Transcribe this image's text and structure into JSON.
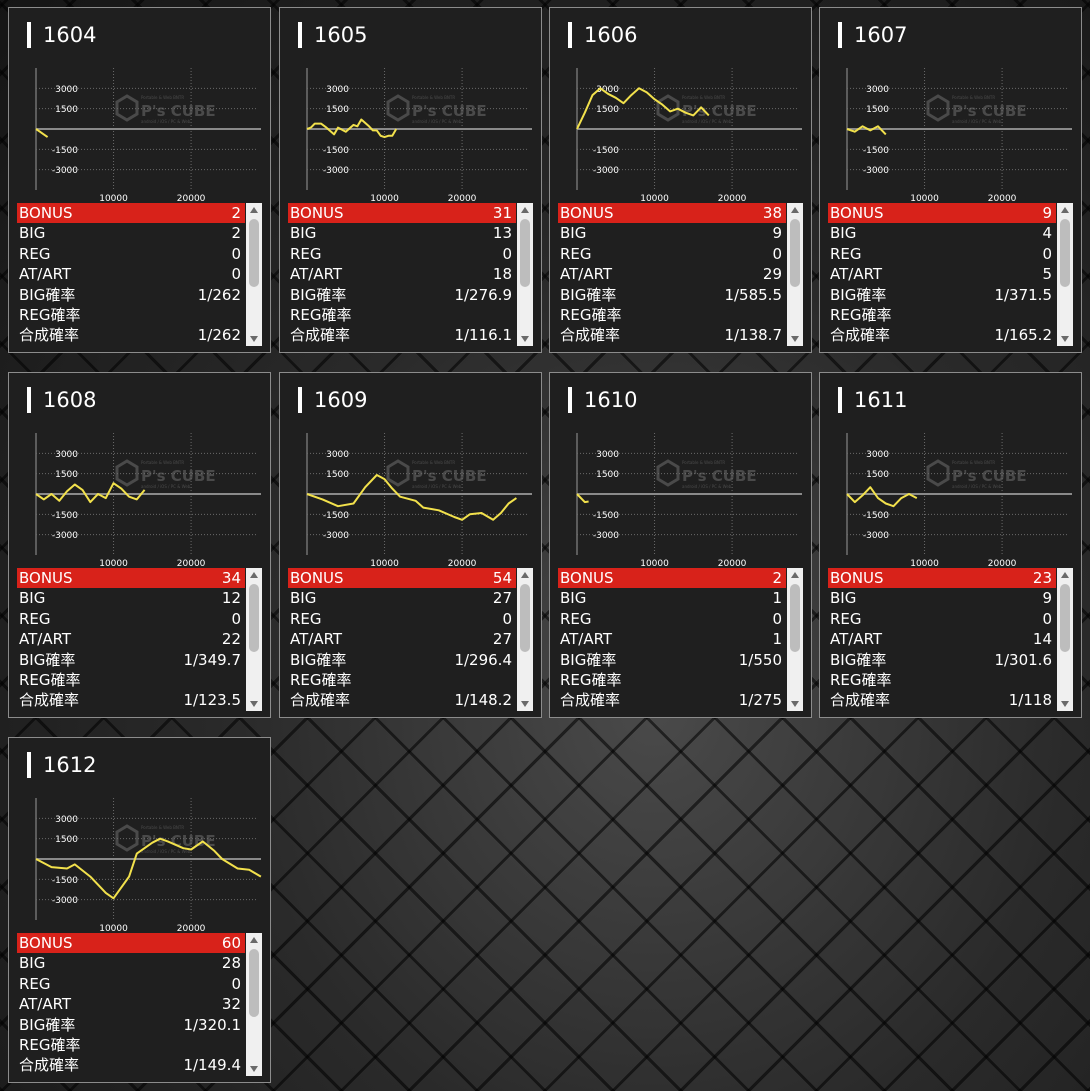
{
  "watermark": {
    "brand": "P's CUBE",
    "line1": "Portable & Web BNTR",
    "line2": "android / iOS / PC & Web"
  },
  "chart_axis": {
    "y_ticks": [
      "3000",
      "1500",
      "-1500",
      "-3000"
    ],
    "x_ticks": [
      "10000",
      "20000"
    ],
    "ylim": [
      -4500,
      4500
    ],
    "xlim": [
      0,
      28500
    ],
    "line_color": "#f2e14c"
  },
  "stat_labels": [
    "BONUS",
    "BIG",
    "REG",
    "AT/ART",
    "BIG確率",
    "REG確率",
    "合成確率"
  ],
  "machines": [
    {
      "number": "1604",
      "stats": [
        "2",
        "2",
        "0",
        "0",
        "1/262",
        "",
        "1/262"
      ],
      "chart_data": {
        "type": "line",
        "x": [
          0,
          500,
          1000,
          1500
        ],
        "y": [
          0,
          -200,
          -400,
          -600
        ]
      }
    },
    {
      "number": "1605",
      "stats": [
        "31",
        "13",
        "0",
        "18",
        "1/276.9",
        "",
        "1/116.1"
      ],
      "chart_data": {
        "type": "line",
        "x": [
          0,
          500,
          1000,
          1800,
          2500,
          3500,
          4000,
          5000,
          6000,
          6500,
          7000,
          8000,
          8500,
          9000,
          9500,
          10000,
          10500,
          11000,
          11500
        ],
        "y": [
          0,
          100,
          400,
          400,
          100,
          -400,
          100,
          -200,
          300,
          200,
          700,
          200,
          -100,
          -100,
          -500,
          -600,
          -500,
          -500,
          0
        ]
      }
    },
    {
      "number": "1606",
      "stats": [
        "38",
        "9",
        "0",
        "29",
        "1/585.5",
        "",
        "1/138.7"
      ],
      "chart_data": {
        "type": "line",
        "x": [
          0,
          1000,
          2000,
          3000,
          4000,
          5000,
          6000,
          7000,
          8000,
          9000,
          10000,
          11000,
          12000,
          13000,
          14000,
          15000,
          16000,
          17000
        ],
        "y": [
          0,
          1200,
          2500,
          3000,
          2600,
          2300,
          1900,
          2500,
          3000,
          2700,
          2200,
          1800,
          1300,
          1500,
          1200,
          1000,
          1600,
          1000
        ]
      }
    },
    {
      "number": "1607",
      "stats": [
        "9",
        "4",
        "0",
        "5",
        "1/371.5",
        "",
        "1/165.2"
      ],
      "chart_data": {
        "type": "line",
        "x": [
          0,
          1000,
          2000,
          3000,
          4000,
          5000
        ],
        "y": [
          0,
          -200,
          200,
          -100,
          200,
          -400
        ]
      }
    },
    {
      "number": "1608",
      "stats": [
        "34",
        "12",
        "0",
        "22",
        "1/349.7",
        "",
        "1/123.5"
      ],
      "chart_data": {
        "type": "line",
        "x": [
          0,
          1000,
          2000,
          3000,
          4000,
          5000,
          6000,
          7000,
          8000,
          9000,
          10000,
          11000,
          12000,
          13000,
          14000
        ],
        "y": [
          0,
          -400,
          0,
          -500,
          200,
          700,
          300,
          -600,
          0,
          -300,
          800,
          400,
          -200,
          -400,
          300
        ]
      }
    },
    {
      "number": "1609",
      "stats": [
        "54",
        "27",
        "0",
        "27",
        "1/296.4",
        "",
        "1/148.2"
      ],
      "chart_data": {
        "type": "line",
        "x": [
          0,
          2000,
          4000,
          6000,
          7500,
          9000,
          10000,
          11000,
          12000,
          14000,
          15000,
          17000,
          19000,
          20000,
          21000,
          22500,
          24000,
          25000,
          26000,
          27000
        ],
        "y": [
          0,
          -400,
          -900,
          -700,
          500,
          1400,
          1100,
          400,
          -200,
          -500,
          -1000,
          -1200,
          -1700,
          -1900,
          -1500,
          -1400,
          -1900,
          -1400,
          -700,
          -300
        ]
      }
    },
    {
      "number": "1610",
      "stats": [
        "2",
        "1",
        "0",
        "1",
        "1/550",
        "",
        "1/275"
      ],
      "chart_data": {
        "type": "line",
        "x": [
          0,
          500,
          1000,
          1500
        ],
        "y": [
          0,
          -300,
          -600,
          -550
        ]
      }
    },
    {
      "number": "1611",
      "stats": [
        "23",
        "9",
        "0",
        "14",
        "1/301.6",
        "",
        "1/118"
      ],
      "chart_data": {
        "type": "line",
        "x": [
          0,
          1000,
          2000,
          3000,
          4000,
          5000,
          6000,
          7000,
          8000,
          9000
        ],
        "y": [
          0,
          -600,
          -100,
          500,
          -300,
          -700,
          -900,
          -300,
          0,
          -300
        ]
      }
    },
    {
      "number": "1612",
      "stats": [
        "60",
        "28",
        "0",
        "32",
        "1/320.1",
        "",
        "1/149.4"
      ],
      "chart_data": {
        "type": "line",
        "x": [
          0,
          2000,
          4000,
          5000,
          7000,
          9000,
          10000,
          12000,
          13000,
          15000,
          16000,
          17000,
          19000,
          20000,
          21500,
          23000,
          24000,
          26000,
          27500,
          29000
        ],
        "y": [
          0,
          -600,
          -700,
          -400,
          -1300,
          -2500,
          -2900,
          -1300,
          400,
          1200,
          1500,
          1300,
          800,
          700,
          1300,
          600,
          0,
          -700,
          -800,
          -1300
        ]
      }
    }
  ]
}
